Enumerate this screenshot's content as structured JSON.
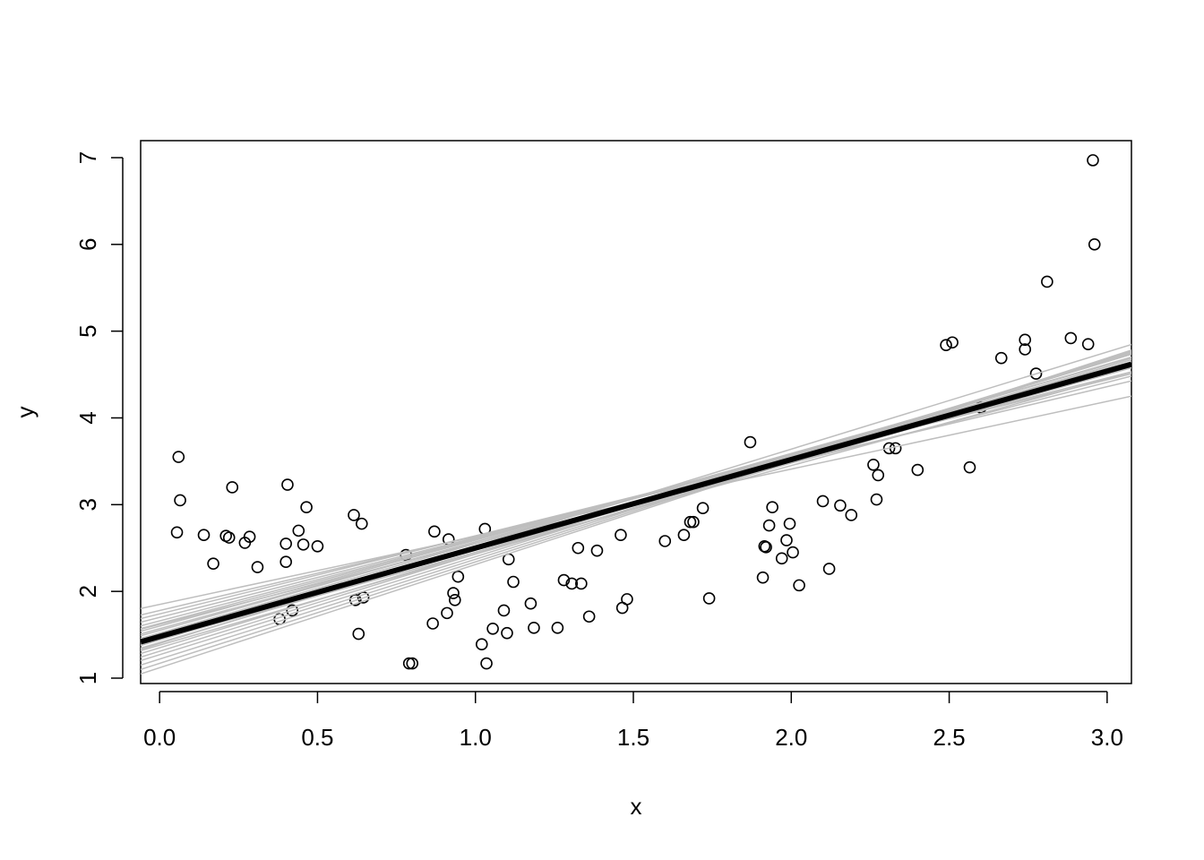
{
  "chart_data": {
    "type": "scatter",
    "x_label": "x",
    "y_label": "y",
    "xlim": [
      -0.06,
      3.077
    ],
    "ylim": [
      0.938,
      7.196
    ],
    "xticks": [
      {
        "value": 0,
        "label": "0.0"
      },
      0.5,
      {
        "value": 1,
        "label": "1.0"
      },
      1.5,
      {
        "value": 2,
        "label": "2.0"
      },
      2.5,
      {
        "value": 3,
        "label": "3.0"
      }
    ],
    "yticks": [
      1,
      2,
      3,
      4,
      5,
      6,
      7
    ],
    "point_color": "#000000",
    "x": [
      0.06,
      0.065,
      0.055,
      0.14,
      0.17,
      0.21,
      0.22,
      0.23,
      0.27,
      0.285,
      0.31,
      0.38,
      0.4,
      0.4,
      0.405,
      0.42,
      0.44,
      0.455,
      0.465,
      0.5,
      0.615,
      0.62,
      0.63,
      0.64,
      0.645,
      0.78,
      0.79,
      0.8,
      0.87,
      0.865,
      0.91,
      0.915,
      0.93,
      0.935,
      0.945,
      1.02,
      1.03,
      1.035,
      1.055,
      1.09,
      1.1,
      1.105,
      1.12,
      1.175,
      1.185,
      1.26,
      1.28,
      1.305,
      1.325,
      1.335,
      1.36,
      1.385,
      1.46,
      1.465,
      1.48,
      1.6,
      1.66,
      1.68,
      1.69,
      1.72,
      1.74,
      1.87,
      1.91,
      1.915,
      1.92,
      1.93,
      1.94,
      1.97,
      1.985,
      1.995,
      2.005,
      2.025,
      2.1,
      2.12,
      2.155,
      2.19,
      2.26,
      2.27,
      2.275,
      2.31,
      2.33,
      2.4,
      2.49,
      2.51,
      2.565,
      2.6,
      2.665,
      2.74,
      2.74,
      2.775,
      2.81,
      2.885,
      2.94,
      2.955,
      2.96
    ],
    "y": [
      3.55,
      3.05,
      2.68,
      2.65,
      2.32,
      2.64,
      2.62,
      3.2,
      2.56,
      2.63,
      2.28,
      1.68,
      2.55,
      2.34,
      3.23,
      1.78,
      2.7,
      2.54,
      2.97,
      2.52,
      2.88,
      1.9,
      1.51,
      2.78,
      1.93,
      2.42,
      1.17,
      1.17,
      2.69,
      1.63,
      1.75,
      2.6,
      1.98,
      1.9,
      2.17,
      1.39,
      2.72,
      1.17,
      1.57,
      1.78,
      1.52,
      2.37,
      2.11,
      1.86,
      1.58,
      1.58,
      2.13,
      2.09,
      2.5,
      2.09,
      1.71,
      2.47,
      2.65,
      1.81,
      1.91,
      2.58,
      2.65,
      2.8,
      2.8,
      2.96,
      1.92,
      3.72,
      2.16,
      2.52,
      2.51,
      2.76,
      2.97,
      2.38,
      2.59,
      2.78,
      2.45,
      2.07,
      3.04,
      2.26,
      2.99,
      2.88,
      3.46,
      3.06,
      3.34,
      3.65,
      3.65,
      3.4,
      4.84,
      4.87,
      3.43,
      4.12,
      4.69,
      4.9,
      4.79,
      4.51,
      5.57,
      4.92,
      4.85,
      6.97,
      6.0
    ],
    "line_color": "#bebebe",
    "lines": [
      {
        "intercept": 1.85,
        "slope": 0.78
      },
      {
        "intercept": 1.78,
        "slope": 0.86
      },
      {
        "intercept": 1.74,
        "slope": 0.9
      },
      {
        "intercept": 1.7,
        "slope": 0.92
      },
      {
        "intercept": 1.66,
        "slope": 0.95
      },
      {
        "intercept": 1.63,
        "slope": 0.97
      },
      {
        "intercept": 1.6,
        "slope": 0.99
      },
      {
        "intercept": 1.57,
        "slope": 1.0
      },
      {
        "intercept": 1.55,
        "slope": 1.02
      },
      {
        "intercept": 1.52,
        "slope": 1.03
      },
      {
        "intercept": 1.5,
        "slope": 1.0
      },
      {
        "intercept": 1.47,
        "slope": 1.04
      },
      {
        "intercept": 1.44,
        "slope": 1.06
      },
      {
        "intercept": 1.41,
        "slope": 1.08
      },
      {
        "intercept": 1.38,
        "slope": 1.05
      },
      {
        "intercept": 1.35,
        "slope": 1.1
      },
      {
        "intercept": 1.31,
        "slope": 1.12
      },
      {
        "intercept": 1.27,
        "slope": 1.13
      },
      {
        "intercept": 1.22,
        "slope": 1.15
      },
      {
        "intercept": 1.17,
        "slope": 1.17
      },
      {
        "intercept": 1.12,
        "slope": 1.19
      },
      {
        "intercept": 1.62,
        "slope": 0.93
      },
      {
        "intercept": 1.45,
        "slope": 1.0
      },
      {
        "intercept": 1.4,
        "slope": 1.12
      }
    ],
    "fit": {
      "intercept": 1.48,
      "slope": 1.02,
      "color": "#000000"
    }
  }
}
